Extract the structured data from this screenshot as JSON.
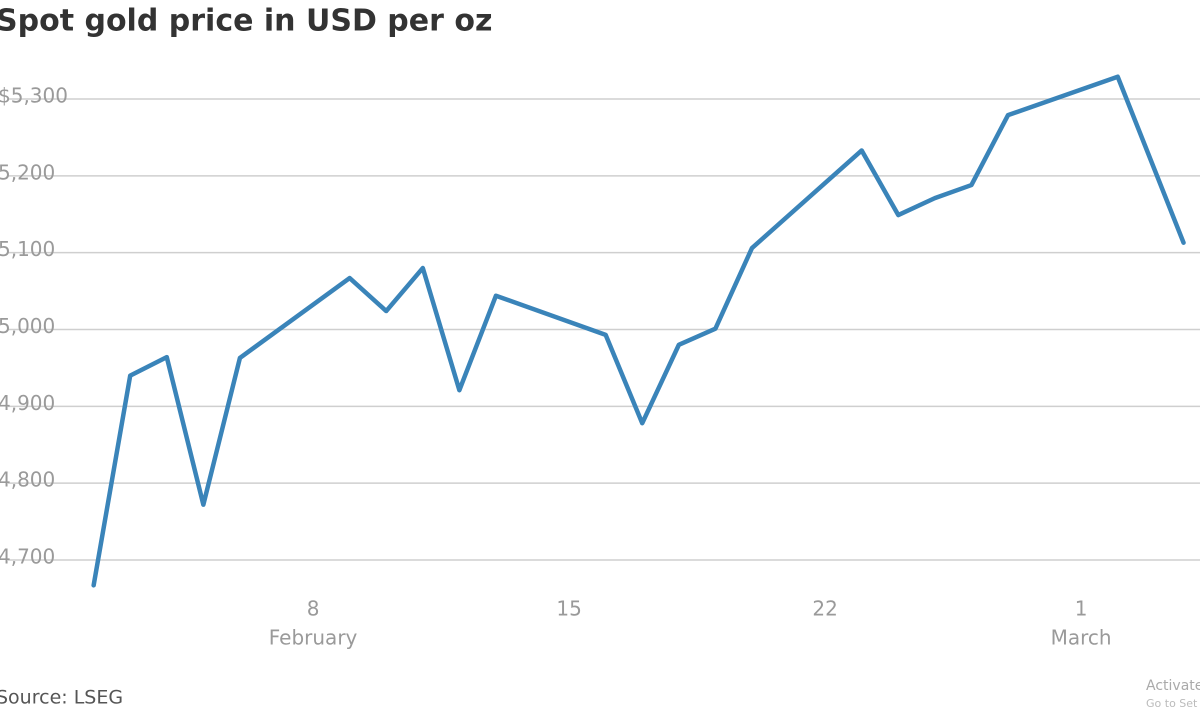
{
  "chart_data": {
    "type": "line",
    "title": "Spot gold price in USD per oz",
    "source": "Source: LSEG",
    "x": [
      2,
      3,
      4,
      5,
      6,
      9,
      10,
      11,
      12,
      13,
      16,
      17,
      18,
      19,
      20,
      23,
      24,
      25,
      26,
      27,
      30,
      31.8
    ],
    "series": [
      {
        "name": "Spot gold",
        "color": "#3a84b9",
        "values": [
          4667,
          4940,
          4964,
          4772,
          4963,
          5067,
          5024,
          5080,
          4921,
          5044,
          4993,
          4878,
          4980,
          5001,
          5106,
          5233,
          5149,
          5171,
          5188,
          5279,
          5329,
          5113
        ]
      }
    ],
    "xlim": [
      -0.56,
      32.25
    ],
    "xticks": [
      8,
      15,
      22,
      {
        "value": 29,
        "label": "1"
      }
    ],
    "month_labels": [
      {
        "value": 8,
        "label": "February"
      },
      {
        "value": 29,
        "label": "March"
      }
    ],
    "ylim": [
      4650,
      5350
    ],
    "yticks": [
      {
        "value": 4700,
        "label": "4,700"
      },
      {
        "value": 4800,
        "label": "4,800"
      },
      {
        "value": 4900,
        "label": "4,900"
      },
      {
        "value": 5000,
        "label": "5,000"
      },
      {
        "value": 5100,
        "label": "5,100"
      },
      {
        "value": 5200,
        "label": "5,200"
      },
      {
        "value": 5300,
        "label": "$5,300"
      }
    ],
    "grid": true,
    "watermark": [
      "Activate",
      "Go to Set"
    ]
  }
}
